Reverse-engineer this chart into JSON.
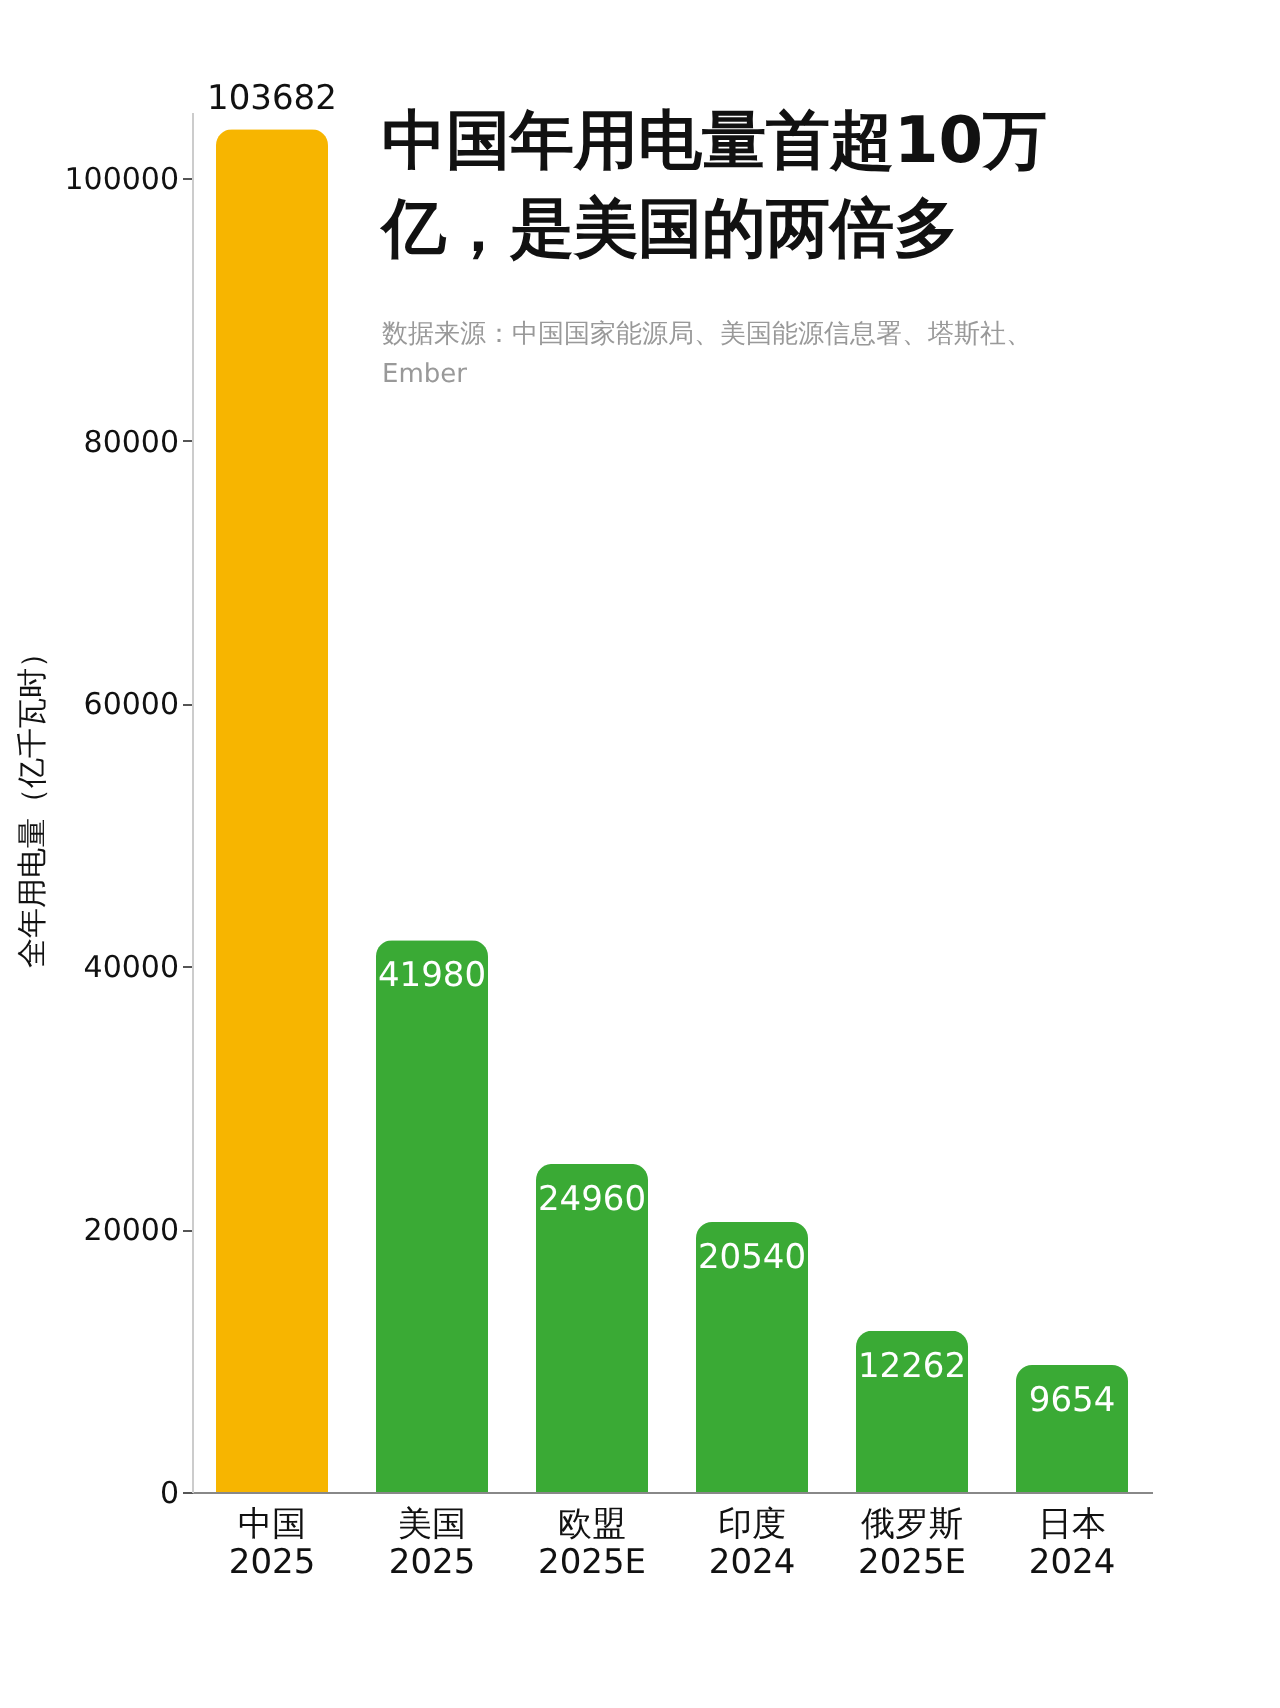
{
  "chart_data": {
    "type": "bar",
    "title": "中国年用电量首超10万亿，是美国的两倍多",
    "annotations": [
      "数据来源：中国国家能源局、美国能源信息署、塔斯社、Ember"
    ],
    "ylabel": "全年用电量（亿千瓦时）",
    "categories": [
      "中国\n2025",
      "美国\n2025",
      "欧盟\n2025E",
      "印度\n2024",
      "俄罗斯\n2025E",
      "日本\n2024"
    ],
    "values": [
      103682,
      41980,
      24960,
      20540,
      12262,
      9654
    ],
    "colors": [
      "#f7b500",
      "#3aaa35",
      "#3aaa35",
      "#3aaa35",
      "#3aaa35",
      "#3aaa35"
    ],
    "ylim": [
      0,
      105000
    ],
    "yticks": [
      0,
      20000,
      40000,
      60000,
      80000,
      100000
    ],
    "data_labels": true,
    "grid": false
  }
}
